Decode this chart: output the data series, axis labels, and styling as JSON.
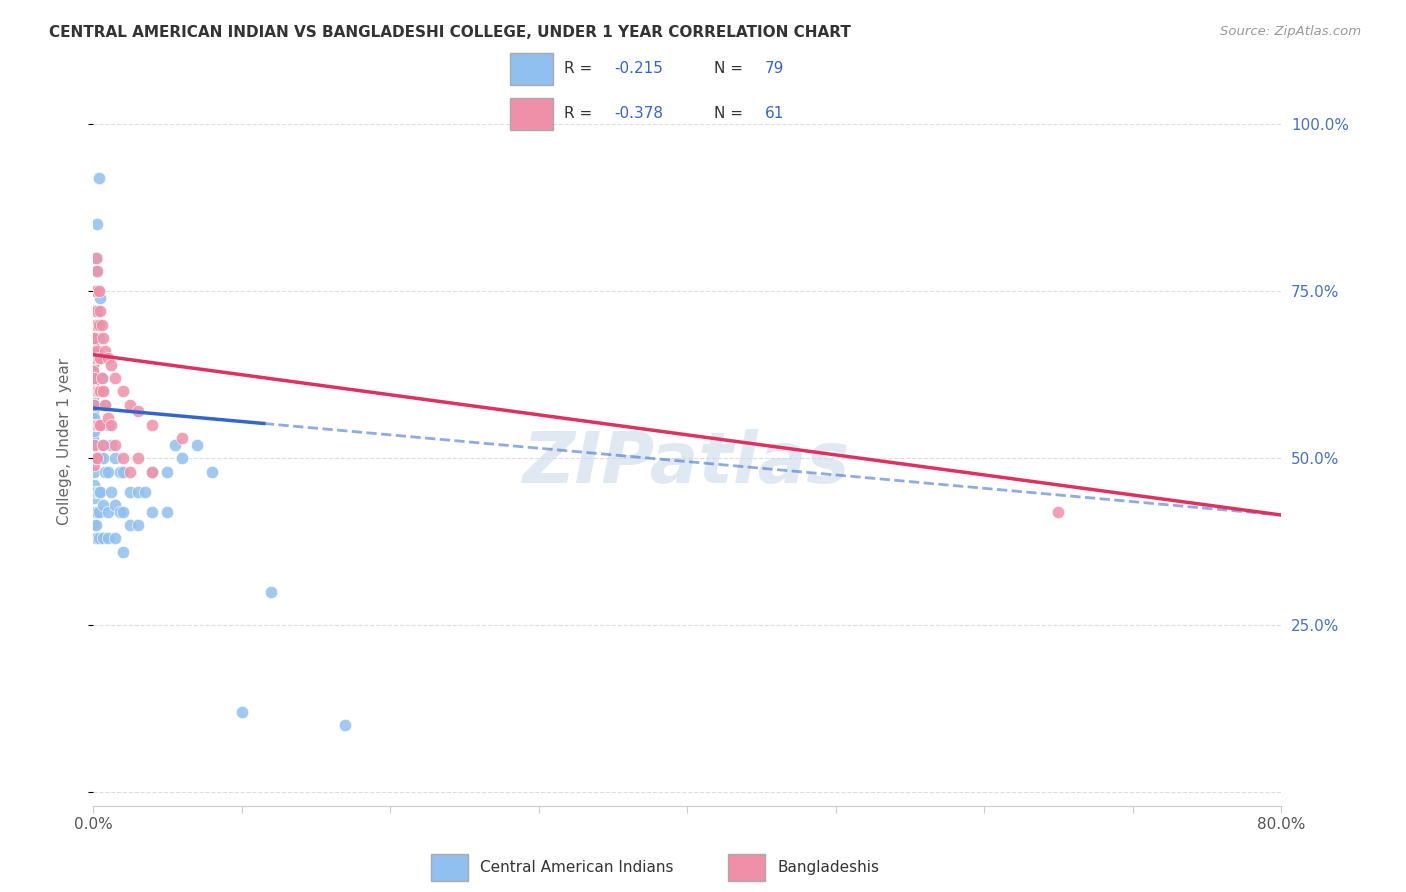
{
  "title": "CENTRAL AMERICAN INDIAN VS BANGLADESHI COLLEGE, UNDER 1 YEAR CORRELATION CHART",
  "source": "Source: ZipAtlas.com",
  "ylabel": "College, Under 1 year",
  "series1_label": "Central American Indians",
  "series2_label": "Bangladeshis",
  "series1_color": "#90c0f0",
  "series2_color": "#f090a8",
  "series1_line_color": "#3366cc",
  "series2_line_color": "#e03060",
  "xmin": 0.0,
  "xmax": 0.8,
  "ymin": -0.02,
  "ymax": 1.07,
  "watermark": "ZIPatlas",
  "background_color": "#ffffff",
  "grid_color": "#dddddd",
  "series1_points": [
    [
      0.0,
      0.67
    ],
    [
      0.0,
      0.66
    ],
    [
      0.0,
      0.65
    ],
    [
      0.0,
      0.64
    ],
    [
      0.0,
      0.63
    ],
    [
      0.0,
      0.62
    ],
    [
      0.0,
      0.61
    ],
    [
      0.0,
      0.6
    ],
    [
      0.0,
      0.59
    ],
    [
      0.0,
      0.58
    ],
    [
      0.0,
      0.57
    ],
    [
      0.0,
      0.56
    ],
    [
      0.0,
      0.55
    ],
    [
      0.0,
      0.54
    ],
    [
      0.0,
      0.53
    ],
    [
      0.001,
      0.68
    ],
    [
      0.001,
      0.62
    ],
    [
      0.001,
      0.6
    ],
    [
      0.001,
      0.58
    ],
    [
      0.001,
      0.56
    ],
    [
      0.001,
      0.54
    ],
    [
      0.001,
      0.52
    ],
    [
      0.001,
      0.5
    ],
    [
      0.001,
      0.48
    ],
    [
      0.001,
      0.46
    ],
    [
      0.001,
      0.44
    ],
    [
      0.001,
      0.42
    ],
    [
      0.001,
      0.4
    ],
    [
      0.002,
      0.78
    ],
    [
      0.002,
      0.72
    ],
    [
      0.002,
      0.66
    ],
    [
      0.002,
      0.6
    ],
    [
      0.002,
      0.55
    ],
    [
      0.002,
      0.5
    ],
    [
      0.002,
      0.45
    ],
    [
      0.002,
      0.4
    ],
    [
      0.002,
      0.38
    ],
    [
      0.003,
      0.85
    ],
    [
      0.003,
      0.8
    ],
    [
      0.003,
      0.72
    ],
    [
      0.003,
      0.66
    ],
    [
      0.003,
      0.6
    ],
    [
      0.003,
      0.55
    ],
    [
      0.003,
      0.5
    ],
    [
      0.003,
      0.45
    ],
    [
      0.003,
      0.42
    ],
    [
      0.004,
      0.92
    ],
    [
      0.004,
      0.75
    ],
    [
      0.004,
      0.68
    ],
    [
      0.004,
      0.6
    ],
    [
      0.004,
      0.55
    ],
    [
      0.004,
      0.5
    ],
    [
      0.004,
      0.45
    ],
    [
      0.004,
      0.42
    ],
    [
      0.004,
      0.38
    ],
    [
      0.005,
      0.74
    ],
    [
      0.005,
      0.6
    ],
    [
      0.005,
      0.55
    ],
    [
      0.005,
      0.5
    ],
    [
      0.005,
      0.45
    ],
    [
      0.006,
      0.62
    ],
    [
      0.006,
      0.52
    ],
    [
      0.007,
      0.6
    ],
    [
      0.007,
      0.5
    ],
    [
      0.007,
      0.43
    ],
    [
      0.007,
      0.38
    ],
    [
      0.008,
      0.58
    ],
    [
      0.008,
      0.48
    ],
    [
      0.01,
      0.55
    ],
    [
      0.01,
      0.48
    ],
    [
      0.01,
      0.42
    ],
    [
      0.01,
      0.38
    ],
    [
      0.012,
      0.52
    ],
    [
      0.012,
      0.45
    ],
    [
      0.015,
      0.5
    ],
    [
      0.015,
      0.43
    ],
    [
      0.015,
      0.38
    ],
    [
      0.018,
      0.48
    ],
    [
      0.018,
      0.42
    ],
    [
      0.02,
      0.48
    ],
    [
      0.02,
      0.42
    ],
    [
      0.02,
      0.36
    ],
    [
      0.025,
      0.45
    ],
    [
      0.025,
      0.4
    ],
    [
      0.03,
      0.45
    ],
    [
      0.03,
      0.4
    ],
    [
      0.035,
      0.45
    ],
    [
      0.04,
      0.48
    ],
    [
      0.04,
      0.42
    ],
    [
      0.05,
      0.48
    ],
    [
      0.05,
      0.42
    ],
    [
      0.055,
      0.52
    ],
    [
      0.06,
      0.5
    ],
    [
      0.07,
      0.52
    ],
    [
      0.08,
      0.48
    ],
    [
      0.1,
      0.12
    ],
    [
      0.12,
      0.3
    ],
    [
      0.17,
      0.1
    ]
  ],
  "series2_points": [
    [
      0.0,
      0.68
    ],
    [
      0.0,
      0.67
    ],
    [
      0.0,
      0.66
    ],
    [
      0.0,
      0.65
    ],
    [
      0.0,
      0.64
    ],
    [
      0.0,
      0.63
    ],
    [
      0.0,
      0.62
    ],
    [
      0.0,
      0.61
    ],
    [
      0.0,
      0.6
    ],
    [
      0.001,
      0.75
    ],
    [
      0.001,
      0.72
    ],
    [
      0.001,
      0.68
    ],
    [
      0.001,
      0.65
    ],
    [
      0.001,
      0.62
    ],
    [
      0.001,
      0.58
    ],
    [
      0.001,
      0.55
    ],
    [
      0.001,
      0.52
    ],
    [
      0.001,
      0.49
    ],
    [
      0.002,
      0.8
    ],
    [
      0.002,
      0.75
    ],
    [
      0.002,
      0.7
    ],
    [
      0.002,
      0.65
    ],
    [
      0.002,
      0.6
    ],
    [
      0.002,
      0.55
    ],
    [
      0.002,
      0.5
    ],
    [
      0.003,
      0.78
    ],
    [
      0.003,
      0.72
    ],
    [
      0.003,
      0.66
    ],
    [
      0.003,
      0.6
    ],
    [
      0.003,
      0.55
    ],
    [
      0.003,
      0.5
    ],
    [
      0.004,
      0.75
    ],
    [
      0.004,
      0.7
    ],
    [
      0.004,
      0.65
    ],
    [
      0.004,
      0.6
    ],
    [
      0.004,
      0.55
    ],
    [
      0.005,
      0.72
    ],
    [
      0.005,
      0.65
    ],
    [
      0.005,
      0.6
    ],
    [
      0.005,
      0.55
    ],
    [
      0.006,
      0.7
    ],
    [
      0.006,
      0.62
    ],
    [
      0.007,
      0.68
    ],
    [
      0.007,
      0.6
    ],
    [
      0.007,
      0.52
    ],
    [
      0.008,
      0.66
    ],
    [
      0.008,
      0.58
    ],
    [
      0.01,
      0.65
    ],
    [
      0.01,
      0.56
    ],
    [
      0.012,
      0.64
    ],
    [
      0.012,
      0.55
    ],
    [
      0.015,
      0.62
    ],
    [
      0.015,
      0.52
    ],
    [
      0.02,
      0.6
    ],
    [
      0.02,
      0.5
    ],
    [
      0.025,
      0.58
    ],
    [
      0.025,
      0.48
    ],
    [
      0.03,
      0.57
    ],
    [
      0.03,
      0.5
    ],
    [
      0.04,
      0.55
    ],
    [
      0.04,
      0.48
    ],
    [
      0.06,
      0.53
    ],
    [
      0.65,
      0.42
    ]
  ],
  "s1_line_x0": 0.0,
  "s1_line_x1": 0.8,
  "s1_line_y0": 0.575,
  "s1_line_y1": 0.415,
  "s1_solid_xend": 0.115,
  "s2_line_x0": 0.0,
  "s2_line_x1": 0.8,
  "s2_line_y0": 0.655,
  "s2_line_y1": 0.415
}
